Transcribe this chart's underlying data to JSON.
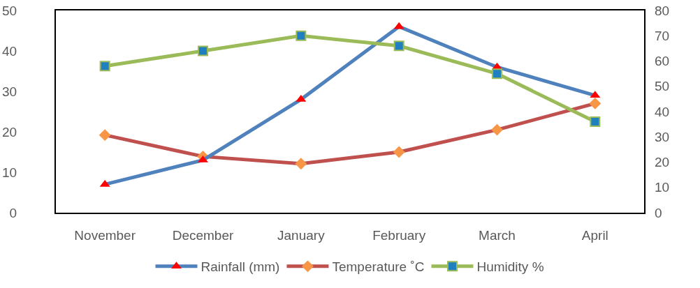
{
  "chart_data": {
    "type": "line",
    "categories": [
      "November",
      "December",
      "January",
      "February",
      "March",
      "April"
    ],
    "series": [
      {
        "name": "Rainfall (mm)",
        "color": "#4f81bd",
        "marker": "triangle",
        "values": [
          7,
          13,
          28,
          46,
          36,
          29
        ]
      },
      {
        "name": "Temperature ˚C",
        "color": "#c0504d",
        "marker": "diamond",
        "values": [
          19.2,
          13.9,
          12.1,
          15,
          20.5,
          27
        ]
      },
      {
        "name": "Humidity %",
        "color": "#9bbb59",
        "marker": "square",
        "axis": "y2",
        "values": [
          58,
          64,
          70,
          66,
          55,
          36
        ]
      }
    ],
    "ylim": [
      0,
      50
    ],
    "yticks": [
      0,
      10,
      20,
      30,
      40,
      50
    ],
    "y2lim": [
      0,
      80
    ],
    "y2ticks": [
      0,
      10,
      20,
      30,
      40,
      50,
      60,
      70,
      80
    ],
    "grid": false,
    "legend": "bottom",
    "line_style": "solid"
  }
}
